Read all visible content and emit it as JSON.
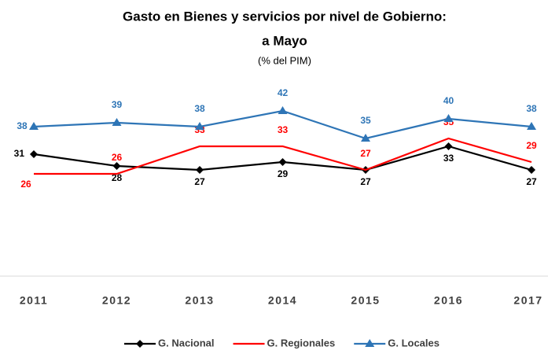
{
  "chart_data": {
    "type": "line",
    "title": [
      "Gasto en Bienes y servicios por nivel de Gobierno:",
      "a Mayo"
    ],
    "subtitle": "(% del PIM)",
    "categories": [
      "2011",
      "2012",
      "2013",
      "2014",
      "2015",
      "2016",
      "2017"
    ],
    "series": [
      {
        "name": "G. Nacional",
        "color": "#000000",
        "marker": "diamond",
        "values": [
          31,
          28,
          27,
          29,
          27,
          33,
          27
        ]
      },
      {
        "name": "G. Regionales",
        "color": "#ff0000",
        "marker": "none",
        "values": [
          26,
          26,
          33,
          33,
          27,
          35,
          29
        ]
      },
      {
        "name": "G. Locales",
        "color": "#2e75b6",
        "marker": "triangle",
        "values": [
          38,
          39,
          38,
          42,
          35,
          40,
          38
        ]
      }
    ],
    "ylim": [
      0,
      50
    ],
    "grid": false,
    "legend": "bottom"
  }
}
